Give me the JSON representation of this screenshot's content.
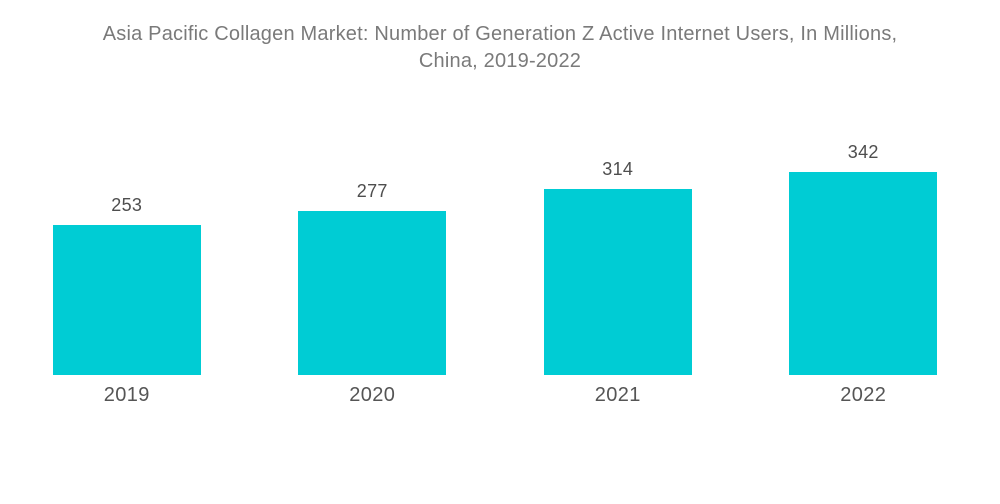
{
  "header": {
    "title_line1": "Asia Pacific Collagen Market: Number of Generation Z Active Internet Users, In Millions,",
    "title_line2": "China, 2019-2022"
  },
  "colors": {
    "bar": "#00CCD4",
    "title_text": "#7A7A7A",
    "value_text": "#4E4E4E",
    "axis_text": "#555555",
    "background": "#FFFFFF"
  },
  "chart_data": {
    "type": "bar",
    "title": "Asia Pacific Collagen Market: Number of Generation Z Active Internet Users, In Millions, China, 2019-2022",
    "categories": [
      "2019",
      "2020",
      "2021",
      "2022"
    ],
    "values": [
      253,
      277,
      314,
      342
    ],
    "xlabel": "",
    "ylabel": "",
    "ylim": [
      0,
      360
    ],
    "grid": false,
    "legend": "none",
    "axes_shown": false,
    "value_labels": "above-bars"
  }
}
